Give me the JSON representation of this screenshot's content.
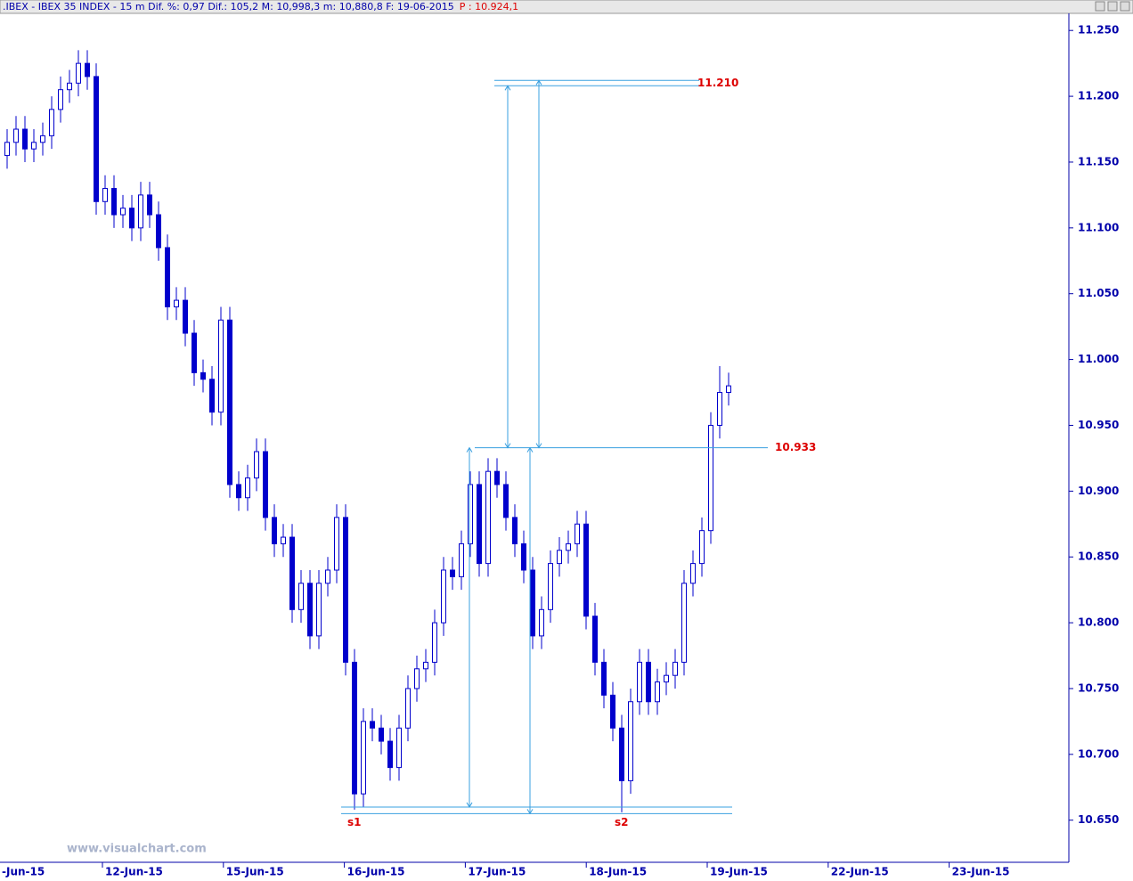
{
  "header": {
    "text": ".IBEX - IBEX 35 INDEX -  15 m Dif. %: 0,97 Dif.: 105,2 M: 10,998,3 m: 10,880,8 F: 19-06-2015",
    "price": "P : 10.924,1"
  },
  "watermark": "www.visualchart.com",
  "chart_data": {
    "type": "candlestick",
    "color": "#0000cc",
    "categories": [
      null,
      null,
      null,
      null,
      null,
      null,
      null,
      null,
      null,
      null,
      null,
      null,
      null,
      null,
      null,
      null,
      null,
      null,
      null,
      null,
      null,
      null,
      null,
      null,
      null,
      null,
      null,
      null,
      null,
      null,
      null,
      null,
      null,
      null,
      null,
      null,
      null,
      null,
      null,
      null,
      null,
      null,
      null,
      null,
      null,
      null,
      null,
      null,
      null,
      null,
      null,
      null,
      null,
      null,
      null,
      null,
      null,
      null,
      null,
      null,
      null,
      null,
      null,
      null,
      null,
      null,
      null,
      null,
      null,
      null,
      null,
      null,
      null,
      null,
      null,
      null,
      null,
      null,
      null,
      null,
      null,
      null
    ],
    "open": [
      11.155,
      11.165,
      11.175,
      11.16,
      11.165,
      11.17,
      11.19,
      11.205,
      11.21,
      11.225,
      11.215,
      11.12,
      11.13,
      11.11,
      11.115,
      11.1,
      11.125,
      11.11,
      11.085,
      11.04,
      11.045,
      11.02,
      10.99,
      10.985,
      10.96,
      11.03,
      10.905,
      10.895,
      10.91,
      10.93,
      10.88,
      10.86,
      10.865,
      10.81,
      10.83,
      10.79,
      10.83,
      10.84,
      10.88,
      10.77,
      10.67,
      10.725,
      10.72,
      10.71,
      10.69,
      10.72,
      10.75,
      10.765,
      10.77,
      10.8,
      10.84,
      10.835,
      10.86,
      10.905,
      10.845,
      10.915,
      10.905,
      10.88,
      10.86,
      10.84,
      10.79,
      10.81,
      10.845,
      10.855,
      10.86,
      10.875,
      10.805,
      10.77,
      10.745,
      10.72,
      10.68,
      10.74,
      10.77,
      10.74,
      10.755,
      10.76,
      10.77,
      10.83,
      10.845,
      10.87,
      10.95,
      10.975
    ],
    "high": [
      11.175,
      11.185,
      11.185,
      11.175,
      11.18,
      11.2,
      11.215,
      11.22,
      11.235,
      11.235,
      11.225,
      11.14,
      11.14,
      11.125,
      11.125,
      11.135,
      11.135,
      11.12,
      11.095,
      11.055,
      11.055,
      11.03,
      11.0,
      10.995,
      11.04,
      11.04,
      10.915,
      10.92,
      10.94,
      10.94,
      10.89,
      10.875,
      10.875,
      10.84,
      10.84,
      10.84,
      10.85,
      10.89,
      10.89,
      10.78,
      10.735,
      10.735,
      10.73,
      10.72,
      10.73,
      10.76,
      10.775,
      10.78,
      10.81,
      10.85,
      10.85,
      10.87,
      10.915,
      10.915,
      10.925,
      10.925,
      10.915,
      10.89,
      10.87,
      10.85,
      10.82,
      10.855,
      10.865,
      10.87,
      10.885,
      10.885,
      10.815,
      10.78,
      10.755,
      10.73,
      10.75,
      10.78,
      10.78,
      10.765,
      10.77,
      10.78,
      10.84,
      10.855,
      10.88,
      10.96,
      10.995,
      10.99
    ],
    "low": [
      11.145,
      11.155,
      11.15,
      11.15,
      11.155,
      11.16,
      11.18,
      11.195,
      11.2,
      11.205,
      11.11,
      11.11,
      11.1,
      11.1,
      11.09,
      11.09,
      11.1,
      11.075,
      11.03,
      11.03,
      11.01,
      10.98,
      10.975,
      10.95,
      10.95,
      10.895,
      10.885,
      10.885,
      10.9,
      10.87,
      10.85,
      10.85,
      10.8,
      10.8,
      10.78,
      10.78,
      10.82,
      10.83,
      10.76,
      10.658,
      10.66,
      10.71,
      10.7,
      10.68,
      10.68,
      10.71,
      10.74,
      10.755,
      10.76,
      10.79,
      10.825,
      10.825,
      10.85,
      10.835,
      10.835,
      10.895,
      10.87,
      10.85,
      10.83,
      10.78,
      10.78,
      10.8,
      10.835,
      10.845,
      10.85,
      10.795,
      10.76,
      10.735,
      10.71,
      10.656,
      10.67,
      10.73,
      10.73,
      10.73,
      10.745,
      10.75,
      10.76,
      10.82,
      10.835,
      10.86,
      10.94,
      10.965
    ],
    "close": [
      11.165,
      11.175,
      11.16,
      11.165,
      11.17,
      11.19,
      11.205,
      11.21,
      11.225,
      11.215,
      11.12,
      11.13,
      11.11,
      11.115,
      11.1,
      11.125,
      11.11,
      11.085,
      11.04,
      11.045,
      11.02,
      10.99,
      10.985,
      10.96,
      11.03,
      10.905,
      10.895,
      10.91,
      10.93,
      10.88,
      10.86,
      10.865,
      10.81,
      10.83,
      10.79,
      10.83,
      10.84,
      10.88,
      10.77,
      10.67,
      10.725,
      10.72,
      10.71,
      10.69,
      10.72,
      10.75,
      10.765,
      10.77,
      10.8,
      10.84,
      10.835,
      10.86,
      10.905,
      10.845,
      10.915,
      10.905,
      10.88,
      10.86,
      10.84,
      10.79,
      10.81,
      10.845,
      10.855,
      10.86,
      10.875,
      10.805,
      10.77,
      10.745,
      10.72,
      10.68,
      10.74,
      10.77,
      10.74,
      10.755,
      10.76,
      10.77,
      10.83,
      10.845,
      10.87,
      10.95,
      10.975,
      10.98
    ],
    "ylim": [
      10.618,
      11.263
    ],
    "yticks": [
      {
        "value": 10.65,
        "label": "10.650"
      },
      {
        "value": 10.7,
        "label": "10.700"
      },
      {
        "value": 10.75,
        "label": "10.750"
      },
      {
        "value": 10.8,
        "label": "10.800"
      },
      {
        "value": 10.85,
        "label": "10.850"
      },
      {
        "value": 10.9,
        "label": "10.900"
      },
      {
        "value": 10.95,
        "label": "10.950"
      },
      {
        "value": 11,
        "label": "11.000"
      },
      {
        "value": 11.05,
        "label": "11.050"
      },
      {
        "value": 11.1,
        "label": "11.100"
      },
      {
        "value": 11.15,
        "label": "11.150"
      },
      {
        "value": 11.2,
        "label": "11.200"
      },
      {
        "value": 11.25,
        "label": "11.250"
      }
    ],
    "x_labels": [
      "-Jun-15",
      "12-Jun-15",
      "15-Jun-15",
      "16-Jun-15",
      "17-Jun-15",
      "18-Jun-15",
      "19-Jun-15",
      "22-Jun-15",
      "23-Jun-15"
    ],
    "target": {
      "value": 11.21,
      "label": "11.210"
    },
    "neckline": {
      "value": 10.933,
      "label": "10.933"
    },
    "support_lines": [
      10.66,
      10.655
    ],
    "support_labels": [
      "s1",
      "s2"
    ]
  }
}
